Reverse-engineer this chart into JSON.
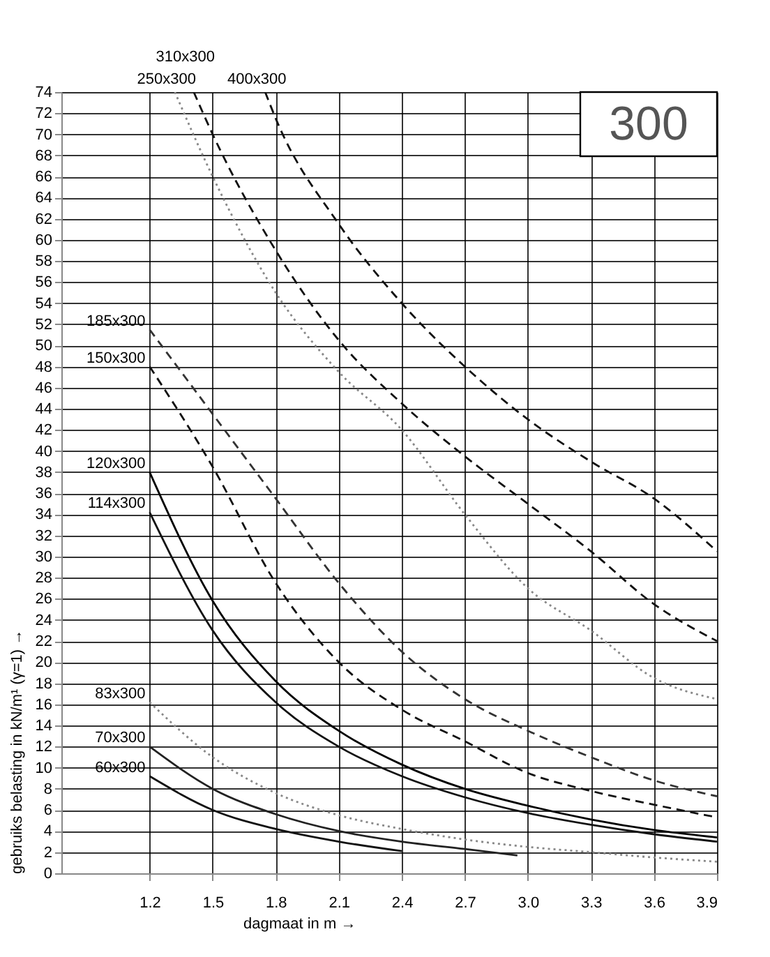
{
  "chart_data": {
    "type": "line",
    "xlabel": "dagmaat in m →",
    "ylabel": "gebruiks belasting in kN/m¹  (γ=1) →",
    "xlim": [
      0.78,
      3.9
    ],
    "ylim": [
      0,
      74
    ],
    "xticks": [
      1.2,
      1.5,
      1.8,
      2.1,
      2.4,
      2.7,
      {
        "value": 3,
        "label": "3.0"
      },
      3.3,
      3.6,
      3.9
    ],
    "yticks": [
      0,
      2,
      4,
      6,
      8,
      10,
      12,
      14,
      16,
      18,
      20,
      22,
      24,
      26,
      28,
      30,
      32,
      34,
      36,
      38,
      40,
      42,
      44,
      46,
      48,
      50,
      52,
      54,
      56,
      58,
      60,
      62,
      64,
      66,
      68,
      70,
      72,
      74
    ],
    "grid": true,
    "marker": "none",
    "annotations": [
      "300"
    ],
    "series": [
      {
        "name": "60x300",
        "color": "#111111",
        "line_style": "solid",
        "x": [
          1.2,
          1.5,
          1.8,
          2.1,
          2.4
        ],
        "values": [
          9.2,
          6.0,
          4.2,
          3.0,
          2.1
        ]
      },
      {
        "name": "70x300",
        "color": "#222222",
        "line_style": "solid",
        "x": [
          1.2,
          1.5,
          1.8,
          2.1,
          2.4,
          2.7,
          2.95
        ],
        "values": [
          12,
          8.0,
          5.6,
          4.0,
          3.0,
          2.3,
          1.7
        ]
      },
      {
        "name": "83x300",
        "color": "#888888",
        "line_style": "dotted",
        "x": [
          1.2,
          1.5,
          1.8,
          2.1,
          2.4,
          2.7,
          3.0,
          3.3,
          3.6,
          3.9
        ],
        "values": [
          16.2,
          11,
          7.6,
          5.5,
          4.2,
          3.2,
          2.5,
          2.0,
          1.5,
          1.1
        ]
      },
      {
        "name": "114x300",
        "color": "#111111",
        "line_style": "solid",
        "x": [
          1.2,
          1.5,
          1.8,
          2.1,
          2.4,
          2.7,
          3.0,
          3.3,
          3.6,
          3.9
        ],
        "values": [
          34.2,
          23,
          16.2,
          12,
          9.2,
          7.2,
          5.7,
          4.6,
          3.7,
          3.0
        ]
      },
      {
        "name": "120x300",
        "color": "#000000",
        "line_style": "solid",
        "x": [
          1.2,
          1.5,
          1.8,
          2.1,
          2.4,
          2.7,
          3.0,
          3.3,
          3.6,
          3.9
        ],
        "values": [
          38,
          25.8,
          18.2,
          13.5,
          10.3,
          8.0,
          6.4,
          5.1,
          4.1,
          3.4
        ]
      },
      {
        "name": "150x300",
        "color": "#111111",
        "line_style": "dashed",
        "x": [
          1.2,
          1.5,
          1.8,
          2.1,
          2.4,
          2.7,
          3.0,
          3.3,
          3.6,
          3.9
        ],
        "values": [
          48,
          38.5,
          27.5,
          20,
          15.5,
          12.5,
          9.5,
          7.8,
          6.5,
          5.3
        ]
      },
      {
        "name": "185x300",
        "color": "#333333",
        "line_style": "dashed",
        "x": [
          1.2,
          1.5,
          1.8,
          2.1,
          2.4,
          2.7,
          3.0,
          3.3,
          3.6,
          3.9
        ],
        "values": [
          51.5,
          43.5,
          35.5,
          27.5,
          21,
          16.5,
          13.5,
          11,
          8.8,
          7.3
        ]
      },
      {
        "name": "250x300",
        "color": "#888888",
        "line_style": "dotted",
        "x": [
          1.32,
          1.5,
          1.8,
          2.1,
          2.4,
          2.7,
          3.0,
          3.3,
          3.6,
          3.9
        ],
        "values": [
          74,
          66,
          55,
          47.5,
          42,
          34,
          27,
          23,
          18.5,
          16.5
        ]
      },
      {
        "name": "310x300",
        "color": "#111111",
        "line_style": "dashed",
        "x": [
          1.41,
          1.5,
          1.8,
          2.1,
          2.4,
          2.7,
          3.0,
          3.3,
          3.6,
          3.9
        ],
        "values": [
          74,
          70,
          59,
          50.5,
          44.5,
          39.5,
          35,
          30.5,
          25.5,
          22
        ]
      },
      {
        "name": "400x300",
        "color": "#111111",
        "line_style": "dashed",
        "x": [
          1.75,
          1.8,
          2.1,
          2.4,
          2.7,
          3.0,
          3.3,
          3.6,
          3.9
        ],
        "values": [
          74,
          71.5,
          61.5,
          54,
          48,
          43,
          39,
          35.5,
          30.5
        ]
      }
    ]
  }
}
